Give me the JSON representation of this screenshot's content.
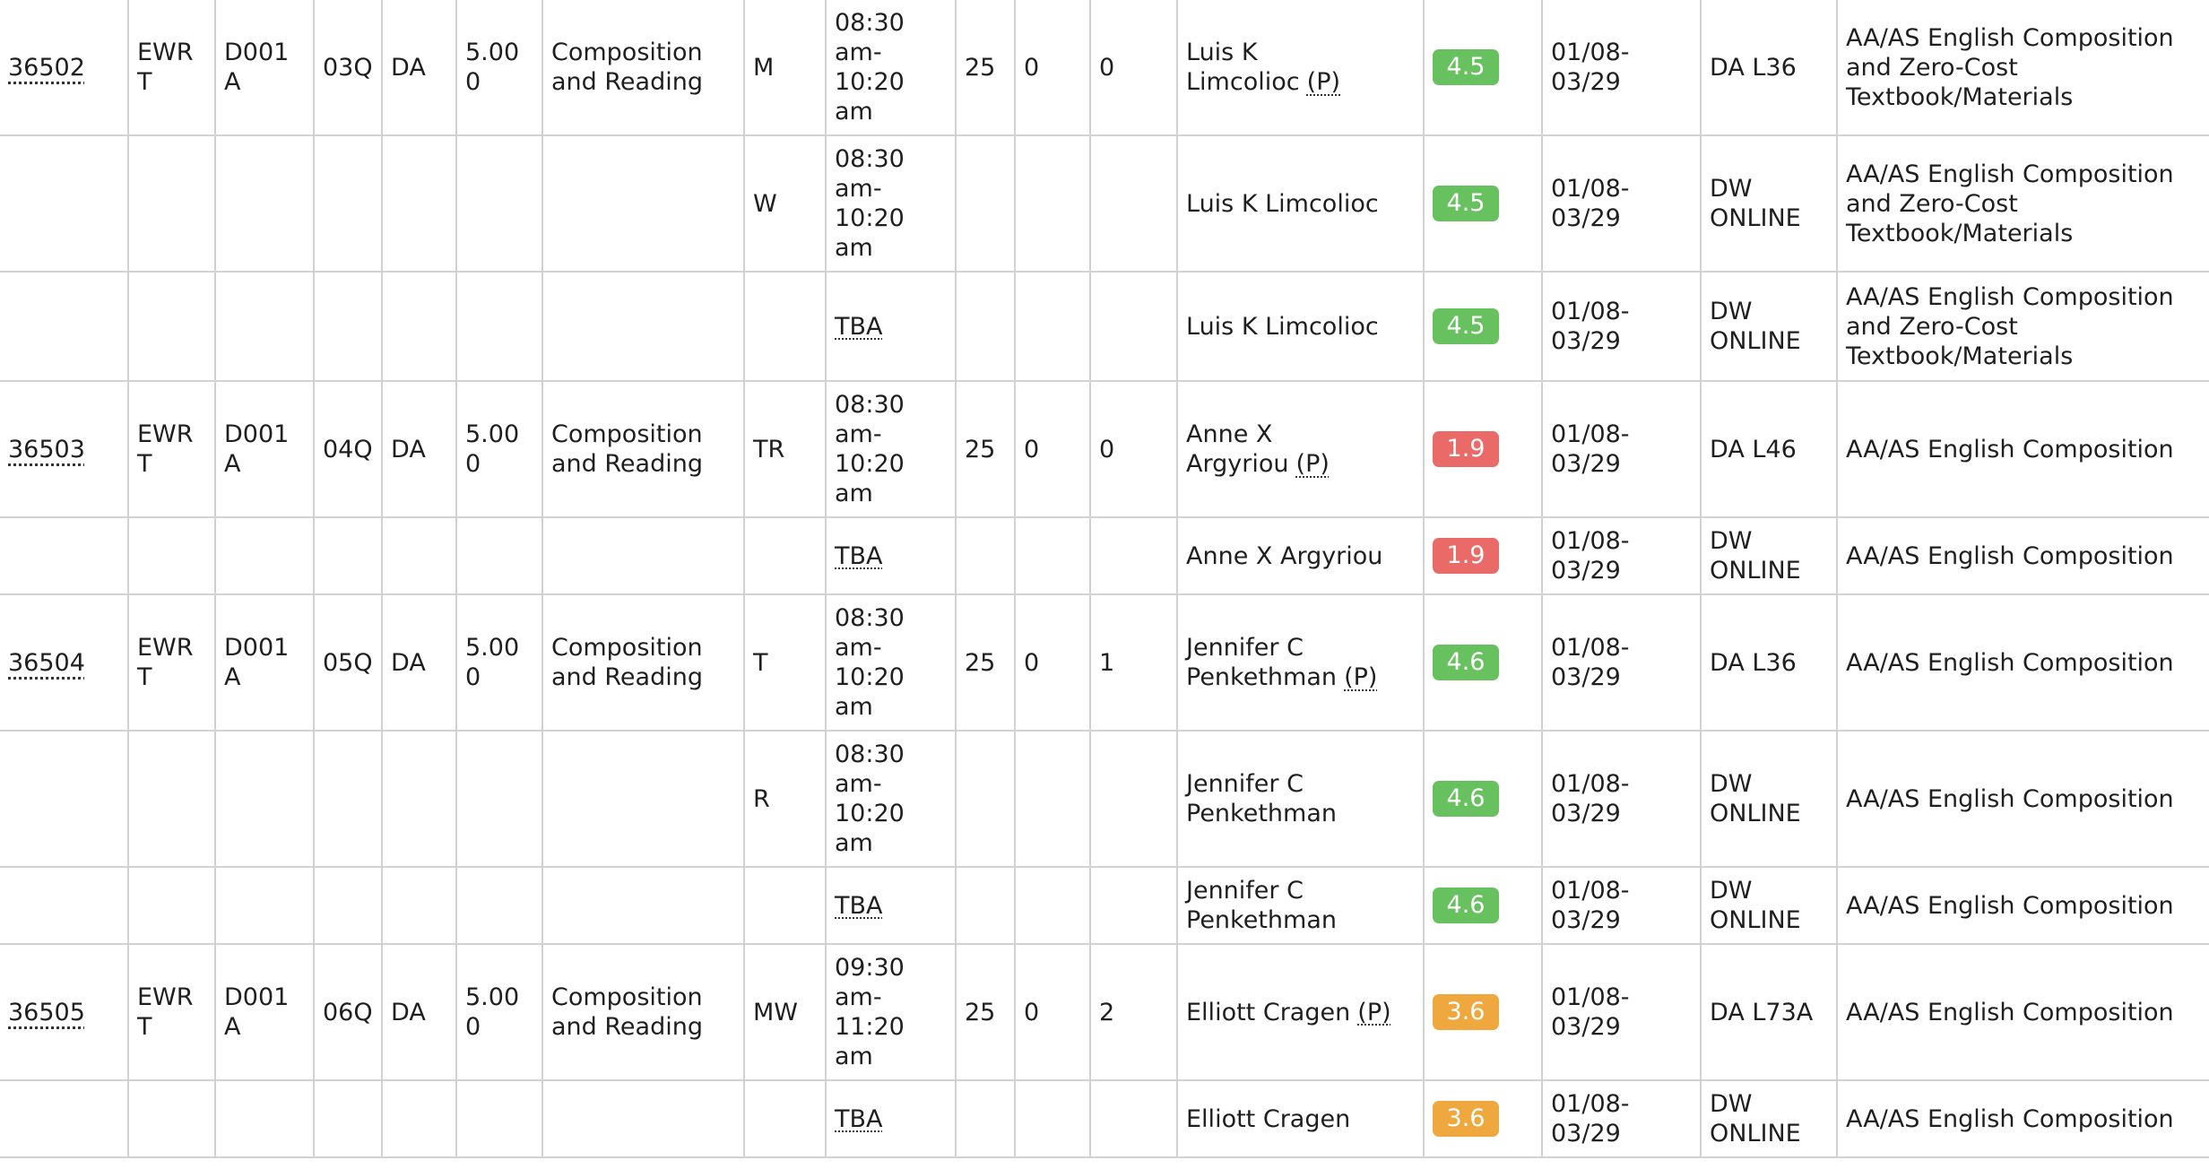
{
  "colors": {
    "rating_high": "#67c15e",
    "rating_mid": "#eea83e",
    "rating_low": "#ea6a67",
    "grid": "#d2d2d2"
  },
  "rows": [
    {
      "crn": "36502",
      "subject": "EWRT",
      "course": "D001A",
      "section": "03Q",
      "campus": "DA",
      "units": "5.000",
      "title": "Composition and Reading",
      "days": "M",
      "time": "08:30 am-10:20 am",
      "tba": "",
      "seats": "25",
      "waitlist": "0",
      "wl_cap": "0",
      "instructor": "Luis K Limcolioc",
      "primary": "(P)",
      "rating": "4.5",
      "rating_level": "high",
      "dates": "01/08-03/29",
      "location": "DA L36",
      "attributes": "AA/AS English Composition and Zero-Cost Textbook/Materials"
    },
    {
      "crn": "",
      "subject": "",
      "course": "",
      "section": "",
      "campus": "",
      "units": "",
      "title": "",
      "days": "W",
      "time": "08:30 am-10:20 am",
      "tba": "",
      "seats": "",
      "waitlist": "",
      "wl_cap": "",
      "instructor": "Luis K Limcolioc",
      "primary": "",
      "rating": "4.5",
      "rating_level": "high",
      "dates": "01/08-03/29",
      "location": "DW ONLINE",
      "attributes": "AA/AS English Composition and Zero-Cost Textbook/Materials"
    },
    {
      "crn": "",
      "subject": "",
      "course": "",
      "section": "",
      "campus": "",
      "units": "",
      "title": "",
      "days": "",
      "time": "",
      "tba": "TBA",
      "seats": "",
      "waitlist": "",
      "wl_cap": "",
      "instructor": "Luis K Limcolioc",
      "primary": "",
      "rating": "4.5",
      "rating_level": "high",
      "dates": "01/08-03/29",
      "location": "DW ONLINE",
      "attributes": "AA/AS English Composition and Zero-Cost Textbook/Materials"
    },
    {
      "crn": "36503",
      "subject": "EWRT",
      "course": "D001A",
      "section": "04Q",
      "campus": "DA",
      "units": "5.000",
      "title": "Composition and Reading",
      "days": "TR",
      "time": "08:30 am-10:20 am",
      "tba": "",
      "seats": "25",
      "waitlist": "0",
      "wl_cap": "0",
      "instructor": "Anne X Argyriou",
      "primary": "(P)",
      "rating": "1.9",
      "rating_level": "low",
      "dates": "01/08-03/29",
      "location": "DA L46",
      "attributes": "AA/AS English Composition"
    },
    {
      "crn": "",
      "subject": "",
      "course": "",
      "section": "",
      "campus": "",
      "units": "",
      "title": "",
      "days": "",
      "time": "",
      "tba": "TBA",
      "seats": "",
      "waitlist": "",
      "wl_cap": "",
      "instructor": "Anne X Argyriou",
      "primary": "",
      "rating": "1.9",
      "rating_level": "low",
      "dates": "01/08-03/29",
      "location": "DW ONLINE",
      "attributes": "AA/AS English Composition"
    },
    {
      "crn": "36504",
      "subject": "EWRT",
      "course": "D001A",
      "section": "05Q",
      "campus": "DA",
      "units": "5.000",
      "title": "Composition and Reading",
      "days": "T",
      "time": "08:30 am-10:20 am",
      "tba": "",
      "seats": "25",
      "waitlist": "0",
      "wl_cap": "1",
      "instructor": "Jennifer C Penkethman",
      "primary": "(P)",
      "rating": "4.6",
      "rating_level": "high",
      "dates": "01/08-03/29",
      "location": "DA L36",
      "attributes": "AA/AS English Composition"
    },
    {
      "crn": "",
      "subject": "",
      "course": "",
      "section": "",
      "campus": "",
      "units": "",
      "title": "",
      "days": "R",
      "time": "08:30 am-10:20 am",
      "tba": "",
      "seats": "",
      "waitlist": "",
      "wl_cap": "",
      "instructor": "Jennifer C Penkethman",
      "primary": "",
      "rating": "4.6",
      "rating_level": "high",
      "dates": "01/08-03/29",
      "location": "DW ONLINE",
      "attributes": "AA/AS English Composition"
    },
    {
      "crn": "",
      "subject": "",
      "course": "",
      "section": "",
      "campus": "",
      "units": "",
      "title": "",
      "days": "",
      "time": "",
      "tba": "TBA",
      "seats": "",
      "waitlist": "",
      "wl_cap": "",
      "instructor": "Jennifer C Penkethman",
      "primary": "",
      "rating": "4.6",
      "rating_level": "high",
      "dates": "01/08-03/29",
      "location": "DW ONLINE",
      "attributes": "AA/AS English Composition"
    },
    {
      "crn": "36505",
      "subject": "EWRT",
      "course": "D001A",
      "section": "06Q",
      "campus": "DA",
      "units": "5.000",
      "title": "Composition and Reading",
      "days": "MW",
      "time": "09:30 am-11:20 am",
      "tba": "",
      "seats": "25",
      "waitlist": "0",
      "wl_cap": "2",
      "instructor": "Elliott Cragen",
      "primary": "(P)",
      "rating": "3.6",
      "rating_level": "mid",
      "dates": "01/08-03/29",
      "location": "DA L73A",
      "attributes": "AA/AS English Composition"
    },
    {
      "crn": "",
      "subject": "",
      "course": "",
      "section": "",
      "campus": "",
      "units": "",
      "title": "",
      "days": "",
      "time": "",
      "tba": "TBA",
      "seats": "",
      "waitlist": "",
      "wl_cap": "",
      "instructor": "Elliott Cragen",
      "primary": "",
      "rating": "3.6",
      "rating_level": "mid",
      "dates": "01/08-03/29",
      "location": "DW ONLINE",
      "attributes": "AA/AS English Composition"
    }
  ]
}
